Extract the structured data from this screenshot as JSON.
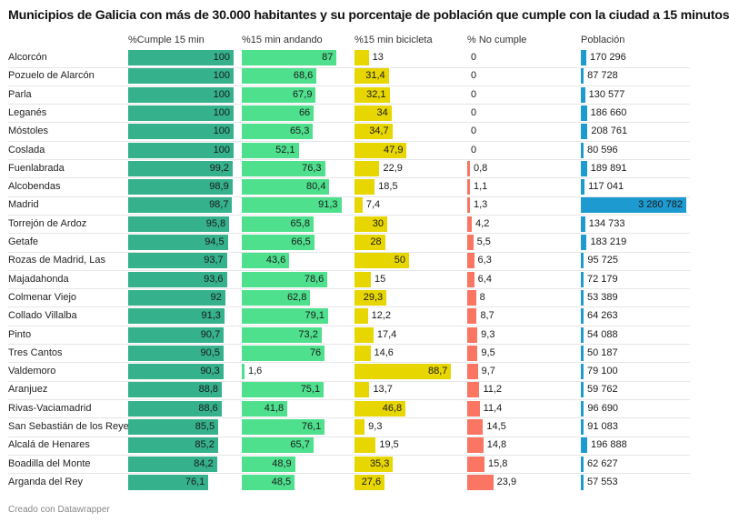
{
  "title": "Municipios de Galicia con más de 30.000 habitantes y su porcentaje de población que cumple con la ciudad a 15 minutos",
  "footer": "Creado con Datawrapper",
  "chart_data": {
    "type": "table",
    "columns": [
      {
        "key": "cumple",
        "label": "%Cumple 15 min",
        "color": "#35b18b",
        "max": 100
      },
      {
        "key": "andando",
        "label": "%15 min andando",
        "color": "#4fe08e",
        "max": 100
      },
      {
        "key": "bici",
        "label": "%15 min bicicleta",
        "color": "#e8d600",
        "max": 100
      },
      {
        "key": "no",
        "label": "% No cumple",
        "color": "#fa7562",
        "max": 100
      },
      {
        "key": "poblacion",
        "label": "Población",
        "color": "#1d9bd1",
        "max": 3280782
      }
    ],
    "rows": [
      {
        "name": "Alcorcón",
        "cumple": 100,
        "cumple_t": "100",
        "andando": 87,
        "andando_t": "87",
        "bici": 13,
        "bici_t": "13",
        "no": 0,
        "no_t": "0",
        "poblacion": 170296,
        "poblacion_t": "170 296"
      },
      {
        "name": "Pozuelo de Alarcón",
        "cumple": 100,
        "cumple_t": "100",
        "andando": 68.6,
        "andando_t": "68,6",
        "bici": 31.4,
        "bici_t": "31,4",
        "no": 0,
        "no_t": "0",
        "poblacion": 87728,
        "poblacion_t": "87 728"
      },
      {
        "name": "Parla",
        "cumple": 100,
        "cumple_t": "100",
        "andando": 67.9,
        "andando_t": "67,9",
        "bici": 32.1,
        "bici_t": "32,1",
        "no": 0,
        "no_t": "0",
        "poblacion": 130577,
        "poblacion_t": "130 577"
      },
      {
        "name": "Leganés",
        "cumple": 100,
        "cumple_t": "100",
        "andando": 66,
        "andando_t": "66",
        "bici": 34,
        "bici_t": "34",
        "no": 0,
        "no_t": "0",
        "poblacion": 186660,
        "poblacion_t": "186 660"
      },
      {
        "name": "Móstoles",
        "cumple": 100,
        "cumple_t": "100",
        "andando": 65.3,
        "andando_t": "65,3",
        "bici": 34.7,
        "bici_t": "34,7",
        "no": 0,
        "no_t": "0",
        "poblacion": 208761,
        "poblacion_t": "208 761"
      },
      {
        "name": "Coslada",
        "cumple": 100,
        "cumple_t": "100",
        "andando": 52.1,
        "andando_t": "52,1",
        "bici": 47.9,
        "bici_t": "47,9",
        "no": 0,
        "no_t": "0",
        "poblacion": 80596,
        "poblacion_t": "80 596"
      },
      {
        "name": "Fuenlabrada",
        "cumple": 99.2,
        "cumple_t": "99,2",
        "andando": 76.3,
        "andando_t": "76,3",
        "bici": 22.9,
        "bici_t": "22,9",
        "no": 0.8,
        "no_t": "0,8",
        "poblacion": 189891,
        "poblacion_t": "189 891"
      },
      {
        "name": "Alcobendas",
        "cumple": 98.9,
        "cumple_t": "98,9",
        "andando": 80.4,
        "andando_t": "80,4",
        "bici": 18.5,
        "bici_t": "18,5",
        "no": 1.1,
        "no_t": "1,1",
        "poblacion": 117041,
        "poblacion_t": "117 041"
      },
      {
        "name": "Madrid",
        "cumple": 98.7,
        "cumple_t": "98,7",
        "andando": 91.3,
        "andando_t": "91,3",
        "bici": 7.4,
        "bici_t": "7,4",
        "no": 1.3,
        "no_t": "1,3",
        "poblacion": 3280782,
        "poblacion_t": "3 280 782"
      },
      {
        "name": "Torrejón de Ardoz",
        "cumple": 95.8,
        "cumple_t": "95,8",
        "andando": 65.8,
        "andando_t": "65,8",
        "bici": 30,
        "bici_t": "30",
        "no": 4.2,
        "no_t": "4,2",
        "poblacion": 134733,
        "poblacion_t": "134 733"
      },
      {
        "name": "Getafe",
        "cumple": 94.5,
        "cumple_t": "94,5",
        "andando": 66.5,
        "andando_t": "66,5",
        "bici": 28,
        "bici_t": "28",
        "no": 5.5,
        "no_t": "5,5",
        "poblacion": 183219,
        "poblacion_t": "183 219"
      },
      {
        "name": "Rozas de Madrid, Las",
        "cumple": 93.7,
        "cumple_t": "93,7",
        "andando": 43.6,
        "andando_t": "43,6",
        "bici": 50,
        "bici_t": "50",
        "no": 6.3,
        "no_t": "6,3",
        "poblacion": 95725,
        "poblacion_t": "95 725"
      },
      {
        "name": "Majadahonda",
        "cumple": 93.6,
        "cumple_t": "93,6",
        "andando": 78.6,
        "andando_t": "78,6",
        "bici": 15,
        "bici_t": "15",
        "no": 6.4,
        "no_t": "6,4",
        "poblacion": 72179,
        "poblacion_t": "72 179"
      },
      {
        "name": "Colmenar Viejo",
        "cumple": 92,
        "cumple_t": "92",
        "andando": 62.8,
        "andando_t": "62,8",
        "bici": 29.3,
        "bici_t": "29,3",
        "no": 8,
        "no_t": "8",
        "poblacion": 53389,
        "poblacion_t": "53 389"
      },
      {
        "name": "Collado Villalba",
        "cumple": 91.3,
        "cumple_t": "91,3",
        "andando": 79.1,
        "andando_t": "79,1",
        "bici": 12.2,
        "bici_t": "12,2",
        "no": 8.7,
        "no_t": "8,7",
        "poblacion": 64263,
        "poblacion_t": "64 263"
      },
      {
        "name": "Pinto",
        "cumple": 90.7,
        "cumple_t": "90,7",
        "andando": 73.2,
        "andando_t": "73,2",
        "bici": 17.4,
        "bici_t": "17,4",
        "no": 9.3,
        "no_t": "9,3",
        "poblacion": 54088,
        "poblacion_t": "54 088"
      },
      {
        "name": "Tres Cantos",
        "cumple": 90.5,
        "cumple_t": "90,5",
        "andando": 76,
        "andando_t": "76",
        "bici": 14.6,
        "bici_t": "14,6",
        "no": 9.5,
        "no_t": "9,5",
        "poblacion": 50187,
        "poblacion_t": "50 187"
      },
      {
        "name": "Valdemoro",
        "cumple": 90.3,
        "cumple_t": "90,3",
        "andando": 1.6,
        "andando_t": "1,6",
        "bici": 88.7,
        "bici_t": "88,7",
        "no": 9.7,
        "no_t": "9,7",
        "poblacion": 79100,
        "poblacion_t": "79 100"
      },
      {
        "name": "Aranjuez",
        "cumple": 88.8,
        "cumple_t": "88,8",
        "andando": 75.1,
        "andando_t": "75,1",
        "bici": 13.7,
        "bici_t": "13,7",
        "no": 11.2,
        "no_t": "11,2",
        "poblacion": 59762,
        "poblacion_t": "59 762"
      },
      {
        "name": "Rivas-Vaciamadrid",
        "cumple": 88.6,
        "cumple_t": "88,6",
        "andando": 41.8,
        "andando_t": "41,8",
        "bici": 46.8,
        "bici_t": "46,8",
        "no": 11.4,
        "no_t": "11,4",
        "poblacion": 96690,
        "poblacion_t": "96 690"
      },
      {
        "name": "San Sebastián de los Reyes",
        "cumple": 85.5,
        "cumple_t": "85,5",
        "andando": 76.1,
        "andando_t": "76,1",
        "bici": 9.3,
        "bici_t": "9,3",
        "no": 14.5,
        "no_t": "14,5",
        "poblacion": 91083,
        "poblacion_t": "91 083"
      },
      {
        "name": "Alcalá de Henares",
        "cumple": 85.2,
        "cumple_t": "85,2",
        "andando": 65.7,
        "andando_t": "65,7",
        "bici": 19.5,
        "bici_t": "19,5",
        "no": 14.8,
        "no_t": "14,8",
        "poblacion": 196888,
        "poblacion_t": "196 888"
      },
      {
        "name": "Boadilla del Monte",
        "cumple": 84.2,
        "cumple_t": "84,2",
        "andando": 48.9,
        "andando_t": "48,9",
        "bici": 35.3,
        "bici_t": "35,3",
        "no": 15.8,
        "no_t": "15,8",
        "poblacion": 62627,
        "poblacion_t": "62 627"
      },
      {
        "name": "Arganda del Rey",
        "cumple": 76.1,
        "cumple_t": "76,1",
        "andando": 48.5,
        "andando_t": "48,5",
        "bici": 27.6,
        "bici_t": "27,6",
        "no": 23.9,
        "no_t": "23,9",
        "poblacion": 57553,
        "poblacion_t": "57 553"
      }
    ]
  }
}
